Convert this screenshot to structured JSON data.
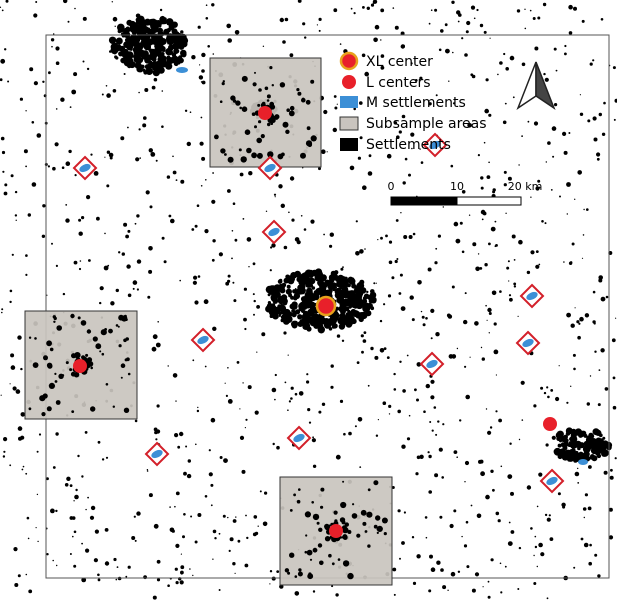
{
  "legend": {
    "items": [
      {
        "label": "XL center"
      },
      {
        "label": "L centers"
      },
      {
        "label": "M settlements"
      },
      {
        "label": "Subsample areas"
      },
      {
        "label": "Settlements"
      }
    ]
  },
  "scale_bar": {
    "labels": [
      "0",
      "10",
      "20 km"
    ]
  }
}
